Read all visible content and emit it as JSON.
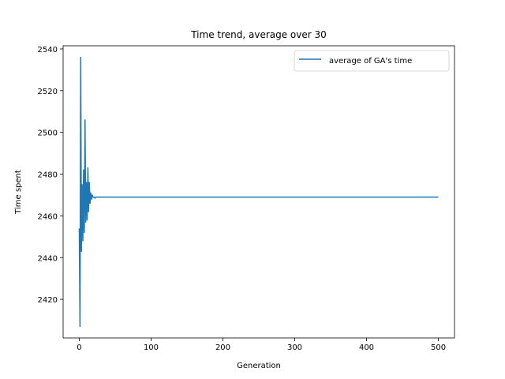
{
  "chart_data": {
    "type": "line",
    "title": "Time trend, average over 30",
    "xlabel": "Generation",
    "ylabel": "Time spent",
    "xlim": [
      -22.5,
      522.5
    ],
    "ylim": [
      2401.5,
      2541.5
    ],
    "xticks": [
      0,
      100,
      200,
      300,
      400,
      500
    ],
    "yticks": [
      2420,
      2440,
      2460,
      2480,
      2500,
      2520,
      2540
    ],
    "grid": false,
    "legend_position": "top-right",
    "series": [
      {
        "name": "average of GA's time",
        "color": "#1f77b4",
        "x": [
          0,
          1,
          2,
          3,
          4,
          5,
          6,
          7,
          8,
          9,
          10,
          11,
          12,
          13,
          14,
          15,
          16,
          17,
          18,
          19,
          20,
          21,
          22,
          23,
          24,
          25,
          26,
          27,
          28,
          29,
          30,
          40,
          60,
          100,
          200,
          300,
          400,
          500
        ],
        "y": [
          2454,
          2407,
          2536,
          2443,
          2475,
          2448,
          2482,
          2452,
          2506,
          2457,
          2476,
          2458,
          2483,
          2462,
          2476,
          2466,
          2471,
          2468,
          2470,
          2469,
          2469,
          2469,
          2468.5,
          2469,
          2469,
          2469,
          2469,
          2469,
          2469,
          2469,
          2469,
          2469,
          2469,
          2469,
          2469,
          2469,
          2469,
          2469
        ]
      }
    ]
  }
}
